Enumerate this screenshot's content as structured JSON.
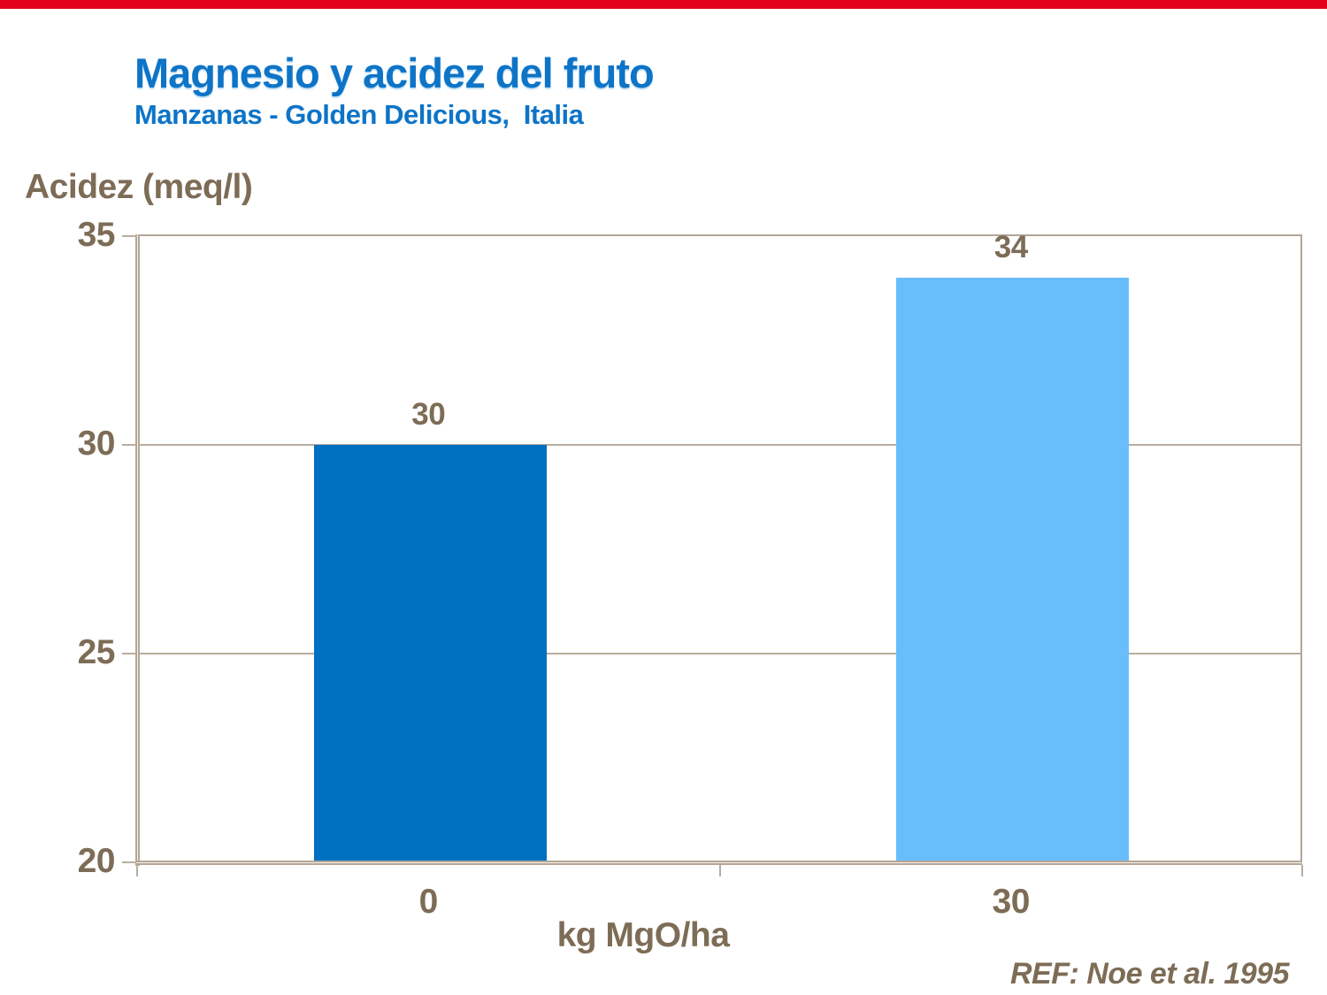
{
  "slide": {
    "title": "Magnesio y acidez del fruto",
    "subtitle": "Manzanas - Golden Delicious,  Italia",
    "footer_ref": "REF: Noe et al. 1995"
  },
  "colors": {
    "accent-red": "#e2001a",
    "title-blue": "#0d74c7",
    "bar-dark": "#0070c0",
    "bar-light": "#67befb",
    "text-brown": "#7d6c56",
    "axis-taupe": "#b3a696",
    "gridline": "#b9ad9f"
  },
  "chart_data": {
    "type": "bar",
    "title": "Magnesio y acidez del fruto",
    "subtitle": "Manzanas - Golden Delicious, Italia",
    "categories": [
      "0",
      "30"
    ],
    "values": [
      30,
      34
    ],
    "data_labels": [
      "30",
      "34"
    ],
    "bar_colors": [
      "#0070c0",
      "#67befb"
    ],
    "xlabel": "kg MgO/ha",
    "ylabel": "Acidez (meq/l)",
    "ylim": [
      20,
      35
    ],
    "yticks": [
      20,
      25,
      30,
      35
    ],
    "gridlines": [
      25,
      30
    ],
    "bar_width_fraction": 0.4,
    "grid": "horizontal",
    "legend": "none",
    "source": "REF: Noe et al. 1995"
  }
}
